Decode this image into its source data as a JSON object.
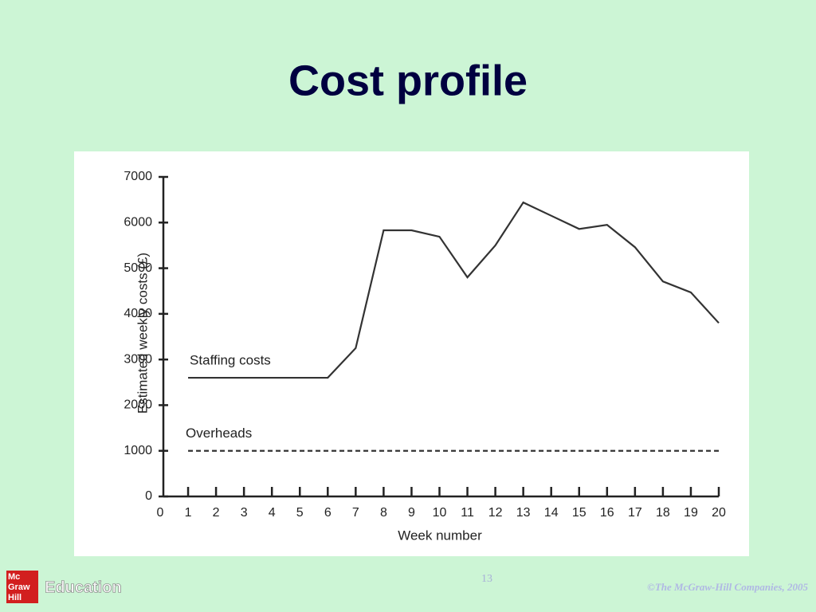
{
  "title": "Cost profile",
  "chart_data": {
    "type": "line",
    "x_label": "Week number",
    "y_label": "Estimated weekly costs (£)",
    "x": [
      1,
      2,
      3,
      4,
      5,
      6,
      7,
      8,
      9,
      10,
      11,
      12,
      13,
      14,
      15,
      16,
      17,
      18,
      19,
      20
    ],
    "series": [
      {
        "name": "Staffing costs",
        "color": "#333333",
        "line_style": "solid",
        "values": [
          2600,
          2600,
          2600,
          2600,
          2600,
          2600,
          3250,
          5830,
          5830,
          5690,
          4800,
          5500,
          6440,
          6150,
          5860,
          5950,
          5460,
          4710,
          4470,
          3800
        ]
      },
      {
        "name": "Overheads",
        "color": "#333333",
        "line_style": "dashed",
        "values": [
          1000,
          1000,
          1000,
          1000,
          1000,
          1000,
          1000,
          1000,
          1000,
          1000,
          1000,
          1000,
          1000,
          1000,
          1000,
          1000,
          1000,
          1000,
          1000,
          1000
        ]
      }
    ],
    "xlim": [
      0,
      20
    ],
    "xticks": [
      0,
      1,
      2,
      3,
      4,
      5,
      6,
      7,
      8,
      9,
      10,
      11,
      12,
      13,
      14,
      15,
      16,
      17,
      18,
      19,
      20
    ],
    "ylim": [
      0,
      7000
    ],
    "yticks": [
      0,
      1000,
      2000,
      3000,
      4000,
      5000,
      6000,
      7000
    ],
    "grid": false
  },
  "slide_number": "13",
  "logo": {
    "lines": [
      "Mc",
      "Graw",
      "Hill"
    ],
    "label": "Education"
  },
  "copyright": "©The McGraw-Hill Companies, 2005"
}
